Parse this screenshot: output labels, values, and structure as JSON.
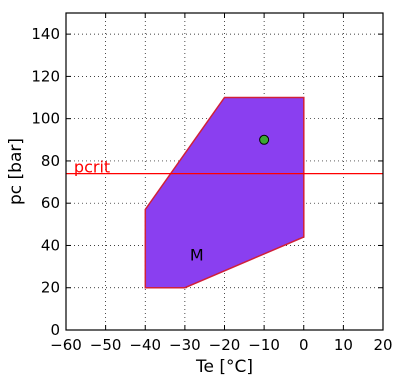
{
  "chart_data": {
    "type": "scatter",
    "xlabel": "Te [°C]",
    "ylabel": "pc [bar]",
    "xlim": [
      -60,
      20
    ],
    "ylim": [
      0,
      150
    ],
    "xticks": [
      -60,
      -50,
      -40,
      -30,
      -20,
      -10,
      0,
      10,
      20
    ],
    "yticks": [
      0,
      20,
      40,
      60,
      80,
      100,
      120,
      140
    ],
    "xtick_labels": [
      "−60",
      "−50",
      "−40",
      "−30",
      "−20",
      "−10",
      "0",
      "10",
      "20"
    ],
    "ytick_labels": [
      "0",
      "20",
      "40",
      "60",
      "80",
      "100",
      "120",
      "140"
    ],
    "grid": true,
    "region": {
      "label": "M",
      "label_position": [
        -27,
        33
      ],
      "fill_color": "#8a3ff0",
      "edge_color": "#d0203a",
      "polygon": [
        [
          -40,
          20
        ],
        [
          -30,
          20
        ],
        [
          0,
          44
        ],
        [
          0,
          110
        ],
        [
          -20,
          110
        ],
        [
          -40,
          57
        ]
      ]
    },
    "hline": {
      "label": "pcrit",
      "y": 74,
      "label_x": -58,
      "color": "#ff0000"
    },
    "points": [
      {
        "x": -10,
        "y": 90,
        "color": "#3aa832"
      }
    ]
  }
}
